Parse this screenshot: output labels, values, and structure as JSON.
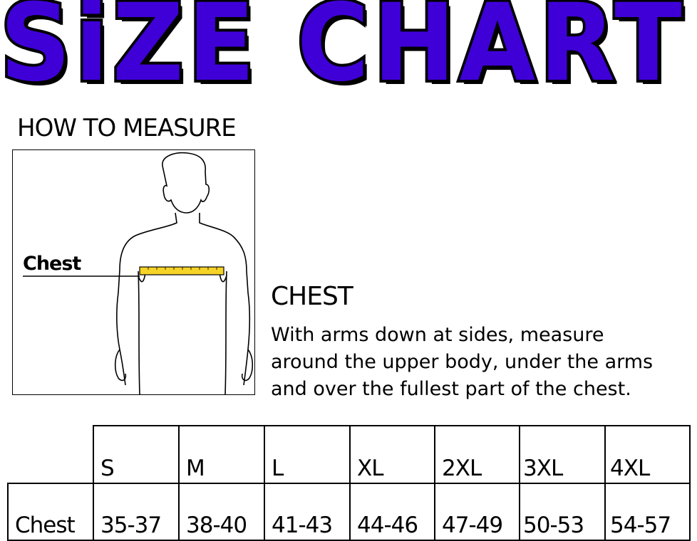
{
  "title": "SiZE CHART",
  "colors": {
    "title_fill": "#3f00d8",
    "tape": "#f5d327"
  },
  "how_to_measure": "HOW TO MEASURE",
  "figure": {
    "label": "Chest"
  },
  "instructions": {
    "heading": "CHEST",
    "lines": [
      "With arms down at sides, measure",
      "around the upper body, under the arms",
      "and over the fullest part of the chest."
    ]
  },
  "table": {
    "sizes": [
      "S",
      "M",
      "L",
      "XL",
      "2XL",
      "3XL",
      "4XL"
    ],
    "row_label": "Chest",
    "values": [
      "35-37",
      "38-40",
      "41-43",
      "44-46",
      "47-49",
      "50-53",
      "54-57"
    ]
  }
}
